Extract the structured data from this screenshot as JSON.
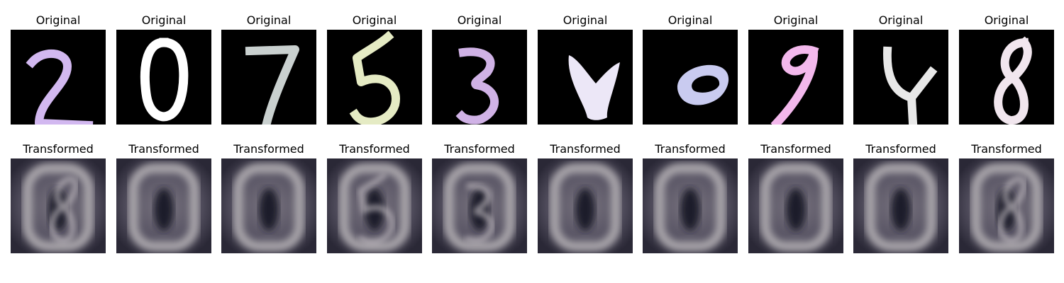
{
  "rows": [
    {
      "title": "Original",
      "tiles": [
        {
          "digit": "2",
          "ink": "#d2b8f0"
        },
        {
          "digit": "0",
          "ink": "#ffffff"
        },
        {
          "digit": "7",
          "ink": "#c9d0cf"
        },
        {
          "digit": "5",
          "ink": "#e5ebc4"
        },
        {
          "digit": "3",
          "ink": "#d0b2e6"
        },
        {
          "digit": "4",
          "ink": "#ece7f7"
        },
        {
          "digit": "0",
          "ink": "#c9cbf0"
        },
        {
          "digit": "9",
          "ink": "#f3b8ec"
        },
        {
          "digit": "4",
          "ink": "#e8e8e8"
        },
        {
          "digit": "8",
          "ink": "#f1e6ee"
        }
      ]
    },
    {
      "title": "Transformed",
      "tiles": [
        {
          "digit": "8"
        },
        {
          "digit": "0"
        },
        {
          "digit": "0"
        },
        {
          "digit": "5"
        },
        {
          "digit": "3"
        },
        {
          "digit": "0"
        },
        {
          "digit": "0"
        },
        {
          "digit": "0"
        },
        {
          "digit": "0"
        },
        {
          "digit": "8"
        }
      ]
    }
  ]
}
